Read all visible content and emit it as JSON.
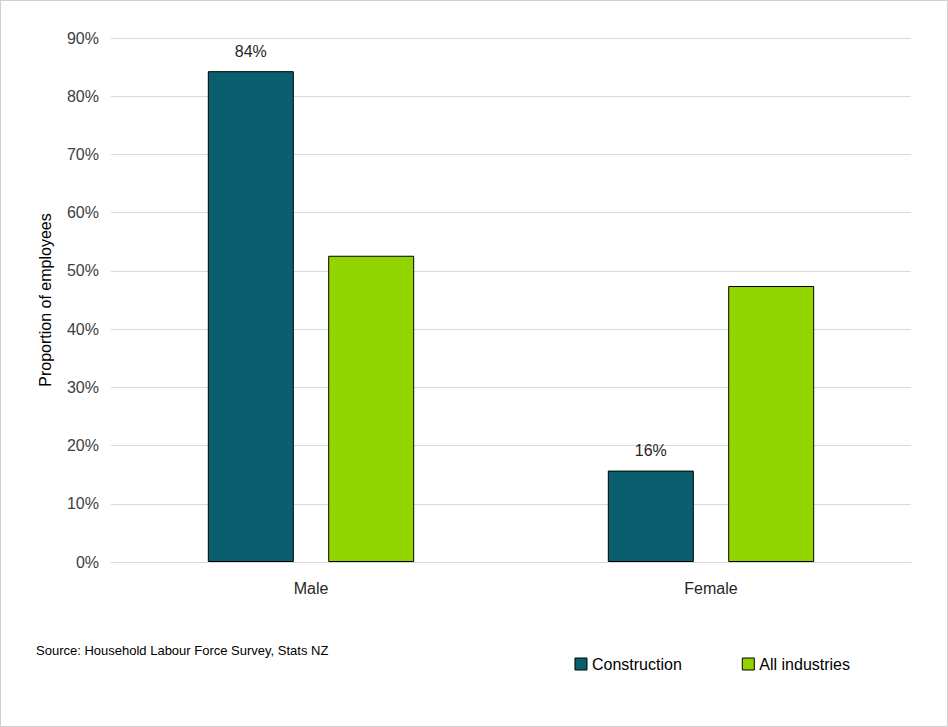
{
  "chart_data": {
    "type": "bar",
    "y_label": "Proportion of employees",
    "source": "Source: Household Labour Force Survey, Stats NZ",
    "categories": [
      "Male",
      "Female"
    ],
    "series": [
      {
        "name": "Construction",
        "color": "#0a5f6e",
        "values": [
          84.3,
          15.7
        ],
        "value_labels": [
          "84%",
          "16%"
        ]
      },
      {
        "name": "All industries",
        "color": "#92d400",
        "values": [
          52.6,
          47.4
        ]
      }
    ],
    "ylim": [
      0,
      90
    ],
    "yticks": [
      {
        "value": 0,
        "label": "0%"
      },
      {
        "value": 10,
        "label": "10%"
      },
      {
        "value": 20,
        "label": "20%"
      },
      {
        "value": 30,
        "label": "30%"
      },
      {
        "value": 40,
        "label": "40%"
      },
      {
        "value": 50,
        "label": "50%"
      },
      {
        "value": 60,
        "label": "60%"
      },
      {
        "value": 70,
        "label": "70%"
      },
      {
        "value": 80,
        "label": "80%"
      },
      {
        "value": 90,
        "label": "90%"
      }
    ],
    "grid": true,
    "legend": "bottom-right"
  }
}
